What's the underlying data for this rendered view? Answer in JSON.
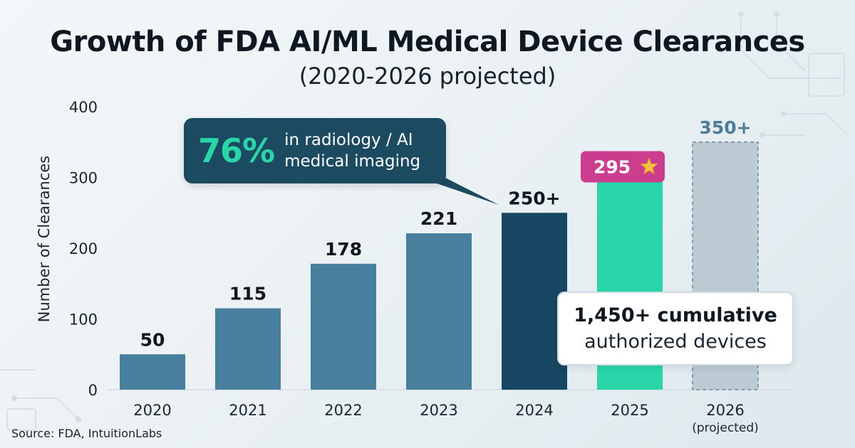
{
  "header": {
    "title": "Growth of FDA AI/ML Medical Device Clearances",
    "subtitle": "(2020-2026 projected)"
  },
  "callout": {
    "percent": "76%",
    "line1": "in radiology / AI",
    "line2": "medical imaging"
  },
  "cumulative": {
    "headline": "1,450+ cumulative",
    "subline": "authorized devices"
  },
  "source": "Source: FDA, IntuitionLabs",
  "colors": {
    "bar_standard": "#477f9c",
    "bar_2024": "#174763",
    "bar_2025": "#2ad6a9",
    "bar_2026": "#bccbd4",
    "badge_2025": "#cd3d8e",
    "projected_label": "#4e7c98"
  },
  "chart_data": {
    "type": "bar",
    "title": "Growth of FDA AI/ML Medical Device Clearances",
    "subtitle": "(2020-2026 projected)",
    "xlabel": "",
    "ylabel": "Number of Clearances",
    "ylim": [
      0,
      400
    ],
    "yticks": [
      0,
      100,
      200,
      300,
      400
    ],
    "grid": false,
    "categories": [
      "2020",
      "2021",
      "2022",
      "2023",
      "2024",
      "2025",
      "2026"
    ],
    "category_sublabels": [
      "",
      "",
      "",
      "",
      "",
      "",
      "(projected)"
    ],
    "values": [
      50,
      115,
      178,
      221,
      250,
      295,
      350
    ],
    "data_labels": [
      "50",
      "115",
      "178",
      "221",
      "250+",
      "295",
      "350+"
    ],
    "highlight": {
      "2025": "star",
      "2026": "projected"
    }
  }
}
